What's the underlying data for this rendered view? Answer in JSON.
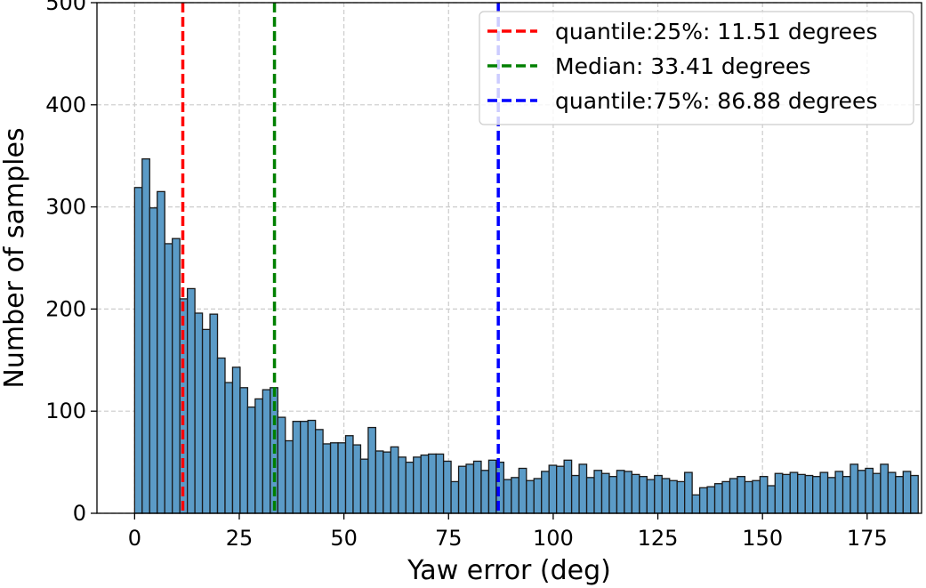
{
  "chart_data": {
    "type": "bar",
    "title": "",
    "xlabel": "Yaw error (deg)",
    "ylabel": "Number of samples",
    "xlim": [
      -9,
      188
    ],
    "ylim": [
      0,
      500
    ],
    "bin_width": 1.8,
    "x_ticks": [
      0,
      25,
      50,
      75,
      100,
      125,
      150,
      175
    ],
    "y_ticks": [
      0,
      100,
      200,
      300,
      400,
      500
    ],
    "grid": true,
    "legend_position": "top-right",
    "bar_color": "#5b9bc7",
    "bar_edge_color": "#1a1a1a",
    "values": [
      319,
      347,
      299,
      315,
      264,
      269,
      210,
      220,
      196,
      180,
      195,
      152,
      128,
      143,
      123,
      104,
      112,
      121,
      123,
      94,
      71,
      90,
      90,
      91,
      82,
      68,
      69,
      69,
      76,
      67,
      53,
      84,
      61,
      60,
      65,
      55,
      50,
      55,
      57,
      58,
      58,
      51,
      31,
      46,
      48,
      51,
      42,
      52,
      50,
      33,
      35,
      44,
      32,
      34,
      41,
      47,
      46,
      52,
      37,
      48,
      35,
      42,
      39,
      36,
      42,
      41,
      38,
      36,
      33,
      37,
      34,
      32,
      31,
      40,
      18,
      25,
      26,
      29,
      31,
      34,
      36,
      31,
      32,
      36,
      27,
      39,
      38,
      40,
      38,
      37,
      36,
      40,
      35,
      41,
      36,
      48,
      42,
      44,
      39,
      48,
      40,
      36,
      41,
      37
    ],
    "reference_lines": [
      {
        "label": "quantile:25%: 11.51 degrees",
        "x": 11.51,
        "color": "#ff0000"
      },
      {
        "label": "Median: 33.41 degrees",
        "x": 33.41,
        "color": "#008000"
      },
      {
        "label": "quantile:75%: 86.88 degrees",
        "x": 86.88,
        "color": "#0000ff"
      }
    ]
  }
}
